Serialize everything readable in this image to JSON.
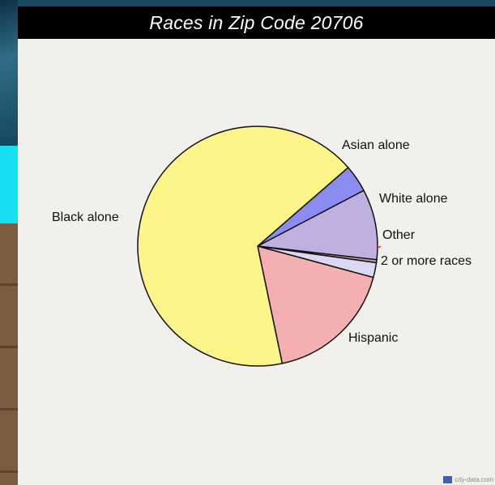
{
  "chart_data": {
    "type": "pie",
    "title": "Races in Zip Code 20706",
    "slices": [
      {
        "label": "Asian alone",
        "value": 3.7,
        "color": "#8c8cf0"
      },
      {
        "label": "White alone",
        "value": 9.5,
        "color": "#c0b0e0"
      },
      {
        "label": "Other",
        "value": 0.4,
        "color": "#c8a098"
      },
      {
        "label": "2 or more races",
        "value": 2.0,
        "color": "#dcd8f4"
      },
      {
        "label": "Hispanic",
        "value": 17.5,
        "color": "#f4b0b0"
      },
      {
        "label": "Black alone",
        "value": 66.9,
        "color": "#fdf58a"
      }
    ],
    "legend": "none",
    "grid": false
  },
  "watermark": {
    "text": "city-data.com"
  }
}
